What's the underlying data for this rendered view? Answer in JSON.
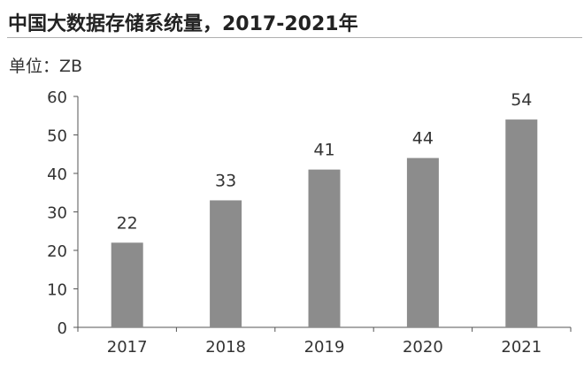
{
  "title": "中国大数据存储系统量，2017-2021年",
  "unit_label": "单位：ZB",
  "chart_data": {
    "type": "bar",
    "title": "中国大数据存储系统量，2017-2021年",
    "xlabel": "",
    "ylabel": "单位：ZB",
    "categories": [
      "2017",
      "2018",
      "2019",
      "2020",
      "2021"
    ],
    "values": [
      22,
      33,
      41,
      44,
      54
    ],
    "data_labels": [
      "22",
      "33",
      "41",
      "44",
      "54"
    ],
    "ylim": [
      0,
      60
    ],
    "yticks": [
      "0",
      "10",
      "20",
      "30",
      "40",
      "50",
      "60"
    ],
    "grid": false,
    "legend": "none",
    "colors": {
      "bar": "#8c8c8c",
      "axis": "#555555",
      "text": "#333333"
    }
  }
}
